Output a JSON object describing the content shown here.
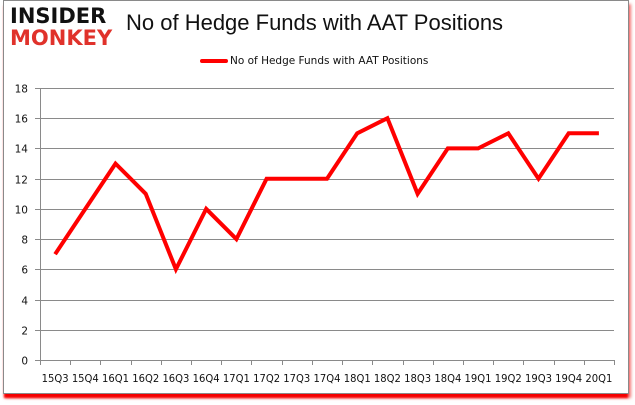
{
  "branding": {
    "logo_line1": "INSIDER",
    "logo_line2": "MONKEY",
    "logo_line1_color": "#111111",
    "logo_line2_color": "#e0322b"
  },
  "chart_data": {
    "type": "line",
    "title": "No of Hedge Funds with AAT Positions",
    "xlabel": "",
    "ylabel": "",
    "ylim": [
      0,
      18
    ],
    "yticks": [
      0,
      2,
      4,
      6,
      8,
      10,
      12,
      14,
      16,
      18
    ],
    "grid": true,
    "legend_position": "top",
    "categories": [
      "15Q3",
      "15Q4",
      "16Q1",
      "16Q2",
      "16Q3",
      "16Q4",
      "17Q1",
      "17Q2",
      "17Q3",
      "17Q4",
      "18Q1",
      "18Q2",
      "18Q3",
      "18Q4",
      "19Q1",
      "19Q2",
      "19Q3",
      "19Q4",
      "20Q1"
    ],
    "series": [
      {
        "name": "No of Hedge Funds with AAT Positions",
        "color": "#ff0000",
        "values": [
          7,
          10,
          13,
          11,
          6,
          10,
          8,
          12,
          12,
          12,
          15,
          16,
          11,
          14,
          14,
          15,
          12,
          15,
          15
        ]
      }
    ]
  }
}
